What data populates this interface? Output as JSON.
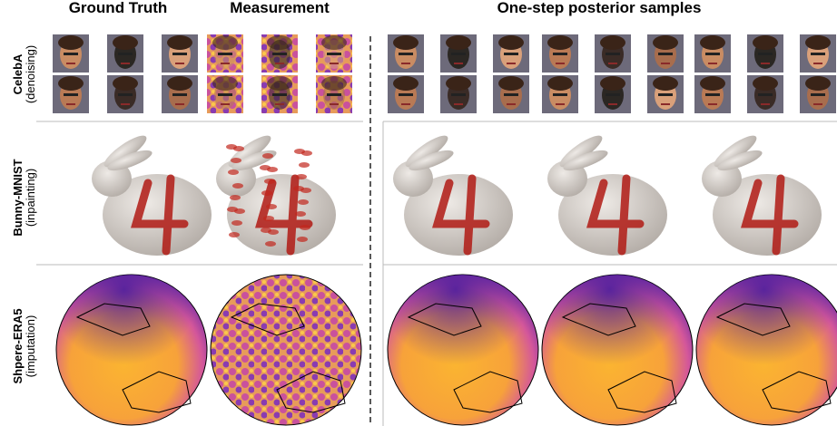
{
  "column_headers": {
    "ground_truth": "Ground Truth",
    "measurement": "Measurement",
    "samples": "One-step posterior samples"
  },
  "rows": [
    {
      "dataset": "CelebA",
      "task": "(denoising)"
    },
    {
      "dataset": "Bunny-MNIST",
      "task": "(inpainting)"
    },
    {
      "dataset": "Shpere-ERA5",
      "task": "(imputation)"
    }
  ]
}
